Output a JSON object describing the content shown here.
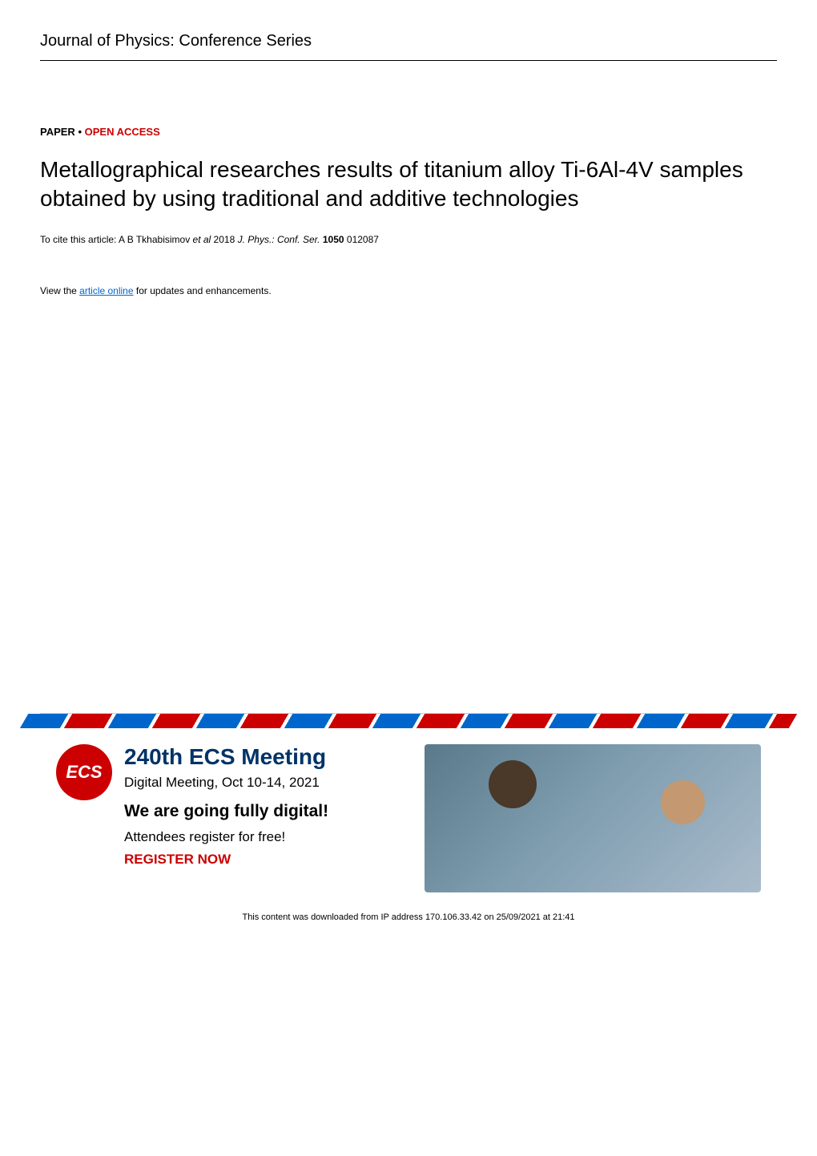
{
  "header": {
    "journal_name": "Journal of Physics: Conference Series"
  },
  "article": {
    "paper_label": "PAPER",
    "separator": " • ",
    "open_access_label": "OPEN ACCESS",
    "title": "Metallographical researches results of titanium alloy Ti-6Al-4V samples obtained by using traditional and additive technologies",
    "citation_prefix": "To cite this article: A B Tkhabisimov ",
    "citation_etal": "et al",
    "citation_year": " 2018 ",
    "citation_journal": "J. Phys.: Conf. Ser.",
    "citation_volume": " 1050",
    "citation_id": " 012087",
    "view_prefix": "View the ",
    "view_link": "article online",
    "view_suffix": " for updates and enhancements."
  },
  "advertisement": {
    "logo_text": "ECS",
    "title": "240th ECS Meeting",
    "subtitle": "Digital Meeting, Oct 10-14, 2021",
    "headline": "We are going fully digital!",
    "body": "Attendees register for free!",
    "cta": "REGISTER NOW",
    "colors": {
      "logo_bg": "#cc0000",
      "title_color": "#003366",
      "cta_color": "#cc0000"
    }
  },
  "footer": {
    "download_text": "This content was downloaded from IP address 170.106.33.42 on 25/09/2021 at 21:41"
  }
}
